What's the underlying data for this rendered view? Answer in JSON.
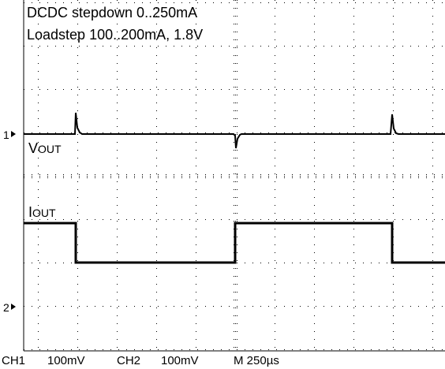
{
  "screen": {
    "title_line1": "DCDC stepdown 0..250mA",
    "title_line2": "Loadstep 100..200mA, 1.8V",
    "ch1_marker": "1",
    "ch1_label_v": "V",
    "ch1_label_sub": "OUT",
    "ch2_marker": "2",
    "ch2_label_i": "I",
    "ch2_label_sub": "OUT",
    "status": {
      "ch1": "CH1",
      "ch1_scale": "100mV",
      "ch2": "CH2",
      "ch2_scale": "100mV",
      "timebase": "M 250µs"
    }
  }
}
